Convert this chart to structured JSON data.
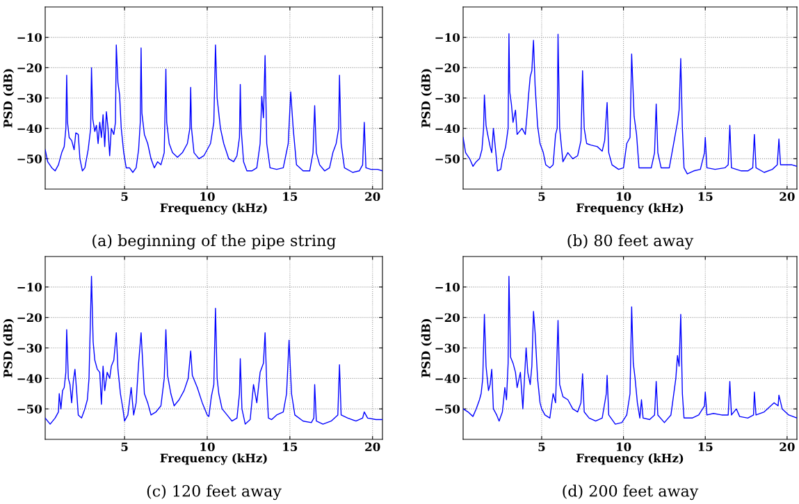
{
  "chart_data": [
    {
      "type": "line",
      "title": "(a) beginning of the pipe string",
      "xlabel": "Frequency (kHz)",
      "ylabel": "PSD (dB)",
      "color": "#0000ff",
      "xlim": [
        0.2,
        20.6
      ],
      "ylim": [
        -60,
        0
      ],
      "xticks": [
        5,
        10,
        15,
        20
      ],
      "yticks": [
        -50,
        -40,
        -30,
        -20,
        -10
      ],
      "grid": true,
      "line_style": "solid",
      "marker": "none",
      "x": [
        0.2,
        0.35,
        0.6,
        0.8,
        1.0,
        1.2,
        1.35,
        1.45,
        1.5,
        1.55,
        1.65,
        1.8,
        1.95,
        2.05,
        2.2,
        2.3,
        2.45,
        2.6,
        2.8,
        2.95,
        3.0,
        3.08,
        3.2,
        3.3,
        3.4,
        3.5,
        3.6,
        3.7,
        3.8,
        3.9,
        4.0,
        4.1,
        4.2,
        4.35,
        4.45,
        4.5,
        4.6,
        4.7,
        4.8,
        4.95,
        5.1,
        5.3,
        5.5,
        5.7,
        5.85,
        5.95,
        6.0,
        6.05,
        6.2,
        6.4,
        6.6,
        6.8,
        7.0,
        7.2,
        7.4,
        7.5,
        7.55,
        7.7,
        7.9,
        8.2,
        8.5,
        8.8,
        8.95,
        9.0,
        9.05,
        9.2,
        9.5,
        9.8,
        10.0,
        10.2,
        10.4,
        10.5,
        10.6,
        10.8,
        11.0,
        11.3,
        11.6,
        11.8,
        11.95,
        12.0,
        12.05,
        12.2,
        12.4,
        12.7,
        13.0,
        13.2,
        13.3,
        13.4,
        13.5,
        13.6,
        13.8,
        14.2,
        14.6,
        14.9,
        15.05,
        15.2,
        15.4,
        15.8,
        16.2,
        16.4,
        16.5,
        16.6,
        16.8,
        17.1,
        17.4,
        17.6,
        17.8,
        17.95,
        18.0,
        18.1,
        18.3,
        18.8,
        19.2,
        19.4,
        19.5,
        19.6,
        19.9,
        20.3,
        20.6
      ],
      "values": [
        -47,
        -51,
        -53,
        -54,
        -52,
        -48,
        -46,
        -40,
        -22.5,
        -38,
        -43,
        -44,
        -47,
        -41.5,
        -42,
        -50,
        -54,
        -53,
        -47,
        -40,
        -20,
        -37,
        -41,
        -39,
        -45,
        -38,
        -43,
        -35.5,
        -46,
        -34.5,
        -40,
        -49,
        -40,
        -42,
        -38,
        -12.5,
        -25,
        -29,
        -40,
        -48,
        -53,
        -53,
        -54.5,
        -53,
        -47,
        -38,
        -13.5,
        -35,
        -42,
        -45,
        -50,
        -53,
        -51,
        -52,
        -48,
        -20.5,
        -38,
        -45,
        -48,
        -49.5,
        -48,
        -45,
        -40,
        -26.5,
        -40,
        -48,
        -50,
        -49,
        -47,
        -45,
        -38,
        -12.5,
        -30,
        -40,
        -45,
        -50,
        -51,
        -49,
        -43,
        -25.5,
        -40,
        -51,
        -54,
        -54,
        -53,
        -45,
        -29.5,
        -36.5,
        -16,
        -45,
        -53,
        -53.5,
        -53,
        -45,
        -28,
        -40,
        -52,
        -54,
        -54,
        -48,
        -32.5,
        -48,
        -52,
        -54,
        -53,
        -48,
        -45,
        -40,
        -22.5,
        -45,
        -53,
        -54.5,
        -54,
        -52,
        -38,
        -53,
        -53.5,
        -53.5,
        -54
      ]
    },
    {
      "type": "line",
      "title": "(b) 80 feet away",
      "xlabel": "Frequency (kHz)",
      "ylabel": "PSD (dB)",
      "color": "#0000ff",
      "xlim": [
        0.2,
        20.6
      ],
      "ylim": [
        -60,
        0
      ],
      "xticks": [
        5,
        10,
        15,
        20
      ],
      "yticks": [
        -50,
        -40,
        -30,
        -20,
        -10
      ],
      "grid": true,
      "line_style": "solid",
      "marker": "none",
      "x": [
        0.2,
        0.35,
        0.6,
        0.8,
        1.0,
        1.2,
        1.35,
        1.45,
        1.5,
        1.6,
        1.7,
        1.85,
        1.95,
        2.05,
        2.2,
        2.3,
        2.5,
        2.6,
        2.8,
        2.95,
        3.0,
        3.05,
        3.15,
        3.25,
        3.4,
        3.5,
        3.8,
        4.0,
        4.1,
        4.2,
        4.3,
        4.4,
        4.5,
        4.6,
        4.75,
        4.9,
        5.1,
        5.25,
        5.5,
        5.7,
        5.85,
        5.95,
        6.0,
        6.1,
        6.3,
        6.6,
        6.9,
        7.2,
        7.4,
        7.5,
        7.6,
        7.75,
        8.0,
        8.4,
        8.7,
        8.85,
        9.0,
        9.1,
        9.3,
        9.7,
        10.0,
        10.2,
        10.4,
        10.5,
        10.65,
        10.8,
        10.95,
        11.3,
        11.7,
        11.9,
        12.0,
        12.1,
        12.3,
        12.8,
        13.1,
        13.3,
        13.4,
        13.5,
        13.6,
        13.7,
        13.9,
        14.3,
        14.7,
        14.95,
        15.0,
        15.1,
        15.6,
        16.2,
        16.4,
        16.5,
        16.6,
        17.2,
        17.6,
        17.9,
        18.0,
        18.1,
        18.6,
        19.1,
        19.4,
        19.5,
        19.6,
        20.0,
        20.3,
        20.6
      ],
      "values": [
        -43,
        -48,
        -50,
        -52.5,
        -51,
        -50,
        -47,
        -40,
        -29,
        -39,
        -42,
        -46,
        -48,
        -40,
        -48,
        -54,
        -53.5,
        -50,
        -46,
        -40,
        -8.8,
        -28,
        -32,
        -38,
        -34,
        -42,
        -40,
        -42,
        -36,
        -29,
        -23,
        -21,
        -11,
        -26,
        -39,
        -45,
        -48,
        -52,
        -53,
        -52,
        -42,
        -40,
        -9,
        -40,
        -51,
        -48,
        -50,
        -49,
        -44,
        -21,
        -40,
        -45,
        -45.5,
        -46,
        -47.5,
        -44,
        -31.5,
        -48,
        -52,
        -53.5,
        -53,
        -45,
        -43,
        -15.5,
        -36,
        -42,
        -53,
        -53,
        -53,
        -48,
        -32,
        -48,
        -53,
        -53,
        -44,
        -38,
        -34,
        -17,
        -40,
        -53,
        -55,
        -54,
        -53.5,
        -48,
        -43,
        -53,
        -53.5,
        -53,
        -52,
        -39,
        -53,
        -54,
        -54,
        -53,
        -42,
        -53,
        -54.5,
        -53.5,
        -52,
        -43.5,
        -52,
        -52,
        -52,
        -52.5
      ]
    },
    {
      "type": "line",
      "title": "(c) 120 feet away",
      "xlabel": "Frequency (kHz)",
      "ylabel": "PSD (dB)",
      "color": "#0000ff",
      "xlim": [
        0.2,
        20.6
      ],
      "ylim": [
        -60,
        0
      ],
      "xticks": [
        5,
        10,
        15,
        20
      ],
      "yticks": [
        -50,
        -40,
        -30,
        -20,
        -10
      ],
      "grid": true,
      "line_style": "solid",
      "marker": "none",
      "x": [
        0.2,
        0.5,
        0.8,
        1.0,
        1.05,
        1.15,
        1.25,
        1.35,
        1.45,
        1.5,
        1.6,
        1.7,
        1.8,
        1.9,
        2.0,
        2.1,
        2.2,
        2.4,
        2.6,
        2.75,
        2.85,
        3.0,
        3.1,
        3.2,
        3.35,
        3.5,
        3.6,
        3.7,
        3.8,
        3.95,
        4.1,
        4.2,
        4.35,
        4.5,
        4.6,
        4.75,
        4.9,
        5.0,
        5.2,
        5.4,
        5.55,
        5.7,
        5.85,
        6.0,
        6.1,
        6.2,
        6.4,
        6.6,
        6.9,
        7.2,
        7.4,
        7.5,
        7.6,
        7.8,
        8.0,
        8.3,
        8.6,
        8.85,
        9.0,
        9.1,
        9.4,
        9.7,
        10.0,
        10.1,
        10.25,
        10.4,
        10.5,
        10.6,
        10.7,
        10.9,
        11.2,
        11.5,
        11.8,
        11.95,
        12.0,
        12.1,
        12.3,
        12.6,
        12.8,
        13.0,
        13.2,
        13.4,
        13.5,
        13.6,
        13.7,
        13.9,
        14.2,
        14.6,
        14.8,
        14.95,
        15.1,
        15.3,
        15.8,
        16.3,
        16.45,
        16.5,
        16.6,
        17.0,
        17.5,
        17.9,
        18.0,
        18.1,
        18.5,
        19.0,
        19.4,
        19.5,
        19.7,
        20.2,
        20.6
      ],
      "values": [
        -53,
        -55,
        -53,
        -51,
        -45,
        -50,
        -44,
        -43,
        -38,
        -24,
        -40,
        -42,
        -48,
        -41,
        -37,
        -44,
        -52,
        -53,
        -50,
        -47,
        -40,
        -6.5,
        -28,
        -34,
        -37,
        -38,
        -48.5,
        -36,
        -44,
        -38,
        -40,
        -36,
        -34,
        -25,
        -37,
        -45,
        -50,
        -54,
        -52,
        -43,
        -52,
        -48,
        -35,
        -25,
        -35,
        -45,
        -48,
        -52,
        -51,
        -49,
        -40,
        -24,
        -39,
        -45,
        -49,
        -47,
        -44,
        -40,
        -31,
        -39,
        -43,
        -48,
        -52,
        -52.5,
        -46,
        -42,
        -17,
        -40,
        -45,
        -50,
        -52,
        -54,
        -53,
        -45,
        -33.5,
        -50,
        -55,
        -53.5,
        -42,
        -48,
        -38,
        -35,
        -25,
        -42,
        -53,
        -53.5,
        -52,
        -51,
        -45,
        -27.5,
        -45,
        -52,
        -54,
        -54.5,
        -53,
        -42,
        -54,
        -55,
        -54,
        -52,
        -35.5,
        -52,
        -53,
        -54,
        -53,
        -51,
        -53,
        -53.5,
        -53.5
      ]
    },
    {
      "type": "line",
      "title": "(d) 200 feet away",
      "xlabel": "Frequency (kHz)",
      "ylabel": "PSD (dB)",
      "color": "#0000ff",
      "xlim": [
        0.2,
        20.6
      ],
      "ylim": [
        -60,
        0
      ],
      "xticks": [
        5,
        10,
        15,
        20
      ],
      "yticks": [
        -50,
        -40,
        -30,
        -20,
        -10
      ],
      "grid": true,
      "line_style": "solid",
      "marker": "none",
      "x": [
        0.2,
        0.5,
        0.8,
        1.0,
        1.2,
        1.3,
        1.4,
        1.5,
        1.6,
        1.75,
        1.85,
        1.95,
        2.05,
        2.25,
        2.4,
        2.6,
        2.75,
        2.85,
        2.95,
        3.0,
        3.1,
        3.25,
        3.4,
        3.5,
        3.7,
        3.85,
        3.95,
        4.05,
        4.15,
        4.3,
        4.4,
        4.5,
        4.6,
        4.75,
        4.9,
        5.0,
        5.2,
        5.5,
        5.7,
        5.85,
        6.0,
        6.1,
        6.3,
        6.6,
        6.9,
        7.2,
        7.4,
        7.5,
        7.6,
        7.9,
        8.3,
        8.7,
        8.95,
        9.0,
        9.1,
        9.5,
        9.9,
        10.2,
        10.4,
        10.5,
        10.6,
        10.7,
        10.85,
        11.0,
        11.1,
        11.2,
        11.6,
        11.9,
        12.0,
        12.1,
        12.5,
        12.9,
        13.2,
        13.3,
        13.4,
        13.5,
        13.6,
        13.7,
        14.2,
        14.6,
        14.95,
        15.0,
        15.1,
        15.5,
        16.0,
        16.4,
        16.5,
        16.6,
        16.9,
        17.1,
        17.6,
        17.95,
        18.0,
        18.1,
        18.6,
        19.2,
        19.45,
        19.5,
        19.7,
        20.1,
        20.6
      ],
      "values": [
        -50,
        -51,
        -52.5,
        -50,
        -47,
        -45,
        -40,
        -19,
        -36,
        -44,
        -42,
        -37,
        -50,
        -52,
        -54,
        -51,
        -43,
        -47,
        -35,
        -6.5,
        -33,
        -35,
        -38,
        -43,
        -38,
        -50,
        -40,
        -30,
        -38,
        -42,
        -36,
        -18,
        -25,
        -40,
        -48,
        -50,
        -52,
        -53,
        -45,
        -48,
        -21,
        -42,
        -46,
        -47,
        -50,
        -51,
        -48,
        -38.5,
        -51,
        -53,
        -54,
        -53,
        -45,
        -39,
        -52,
        -55,
        -54.5,
        -52,
        -45,
        -16.5,
        -35,
        -39.5,
        -48,
        -53,
        -47,
        -53,
        -53.5,
        -52,
        -41,
        -52,
        -54.5,
        -52,
        -40,
        -32.5,
        -36,
        -19,
        -45,
        -53,
        -53,
        -52,
        -49,
        -44.5,
        -52,
        -51.5,
        -52,
        -52,
        -41,
        -52,
        -50,
        -52.5,
        -53,
        -52,
        -44.5,
        -52,
        -51,
        -48,
        -49,
        -45.5,
        -50,
        -52,
        -53
      ]
    }
  ]
}
